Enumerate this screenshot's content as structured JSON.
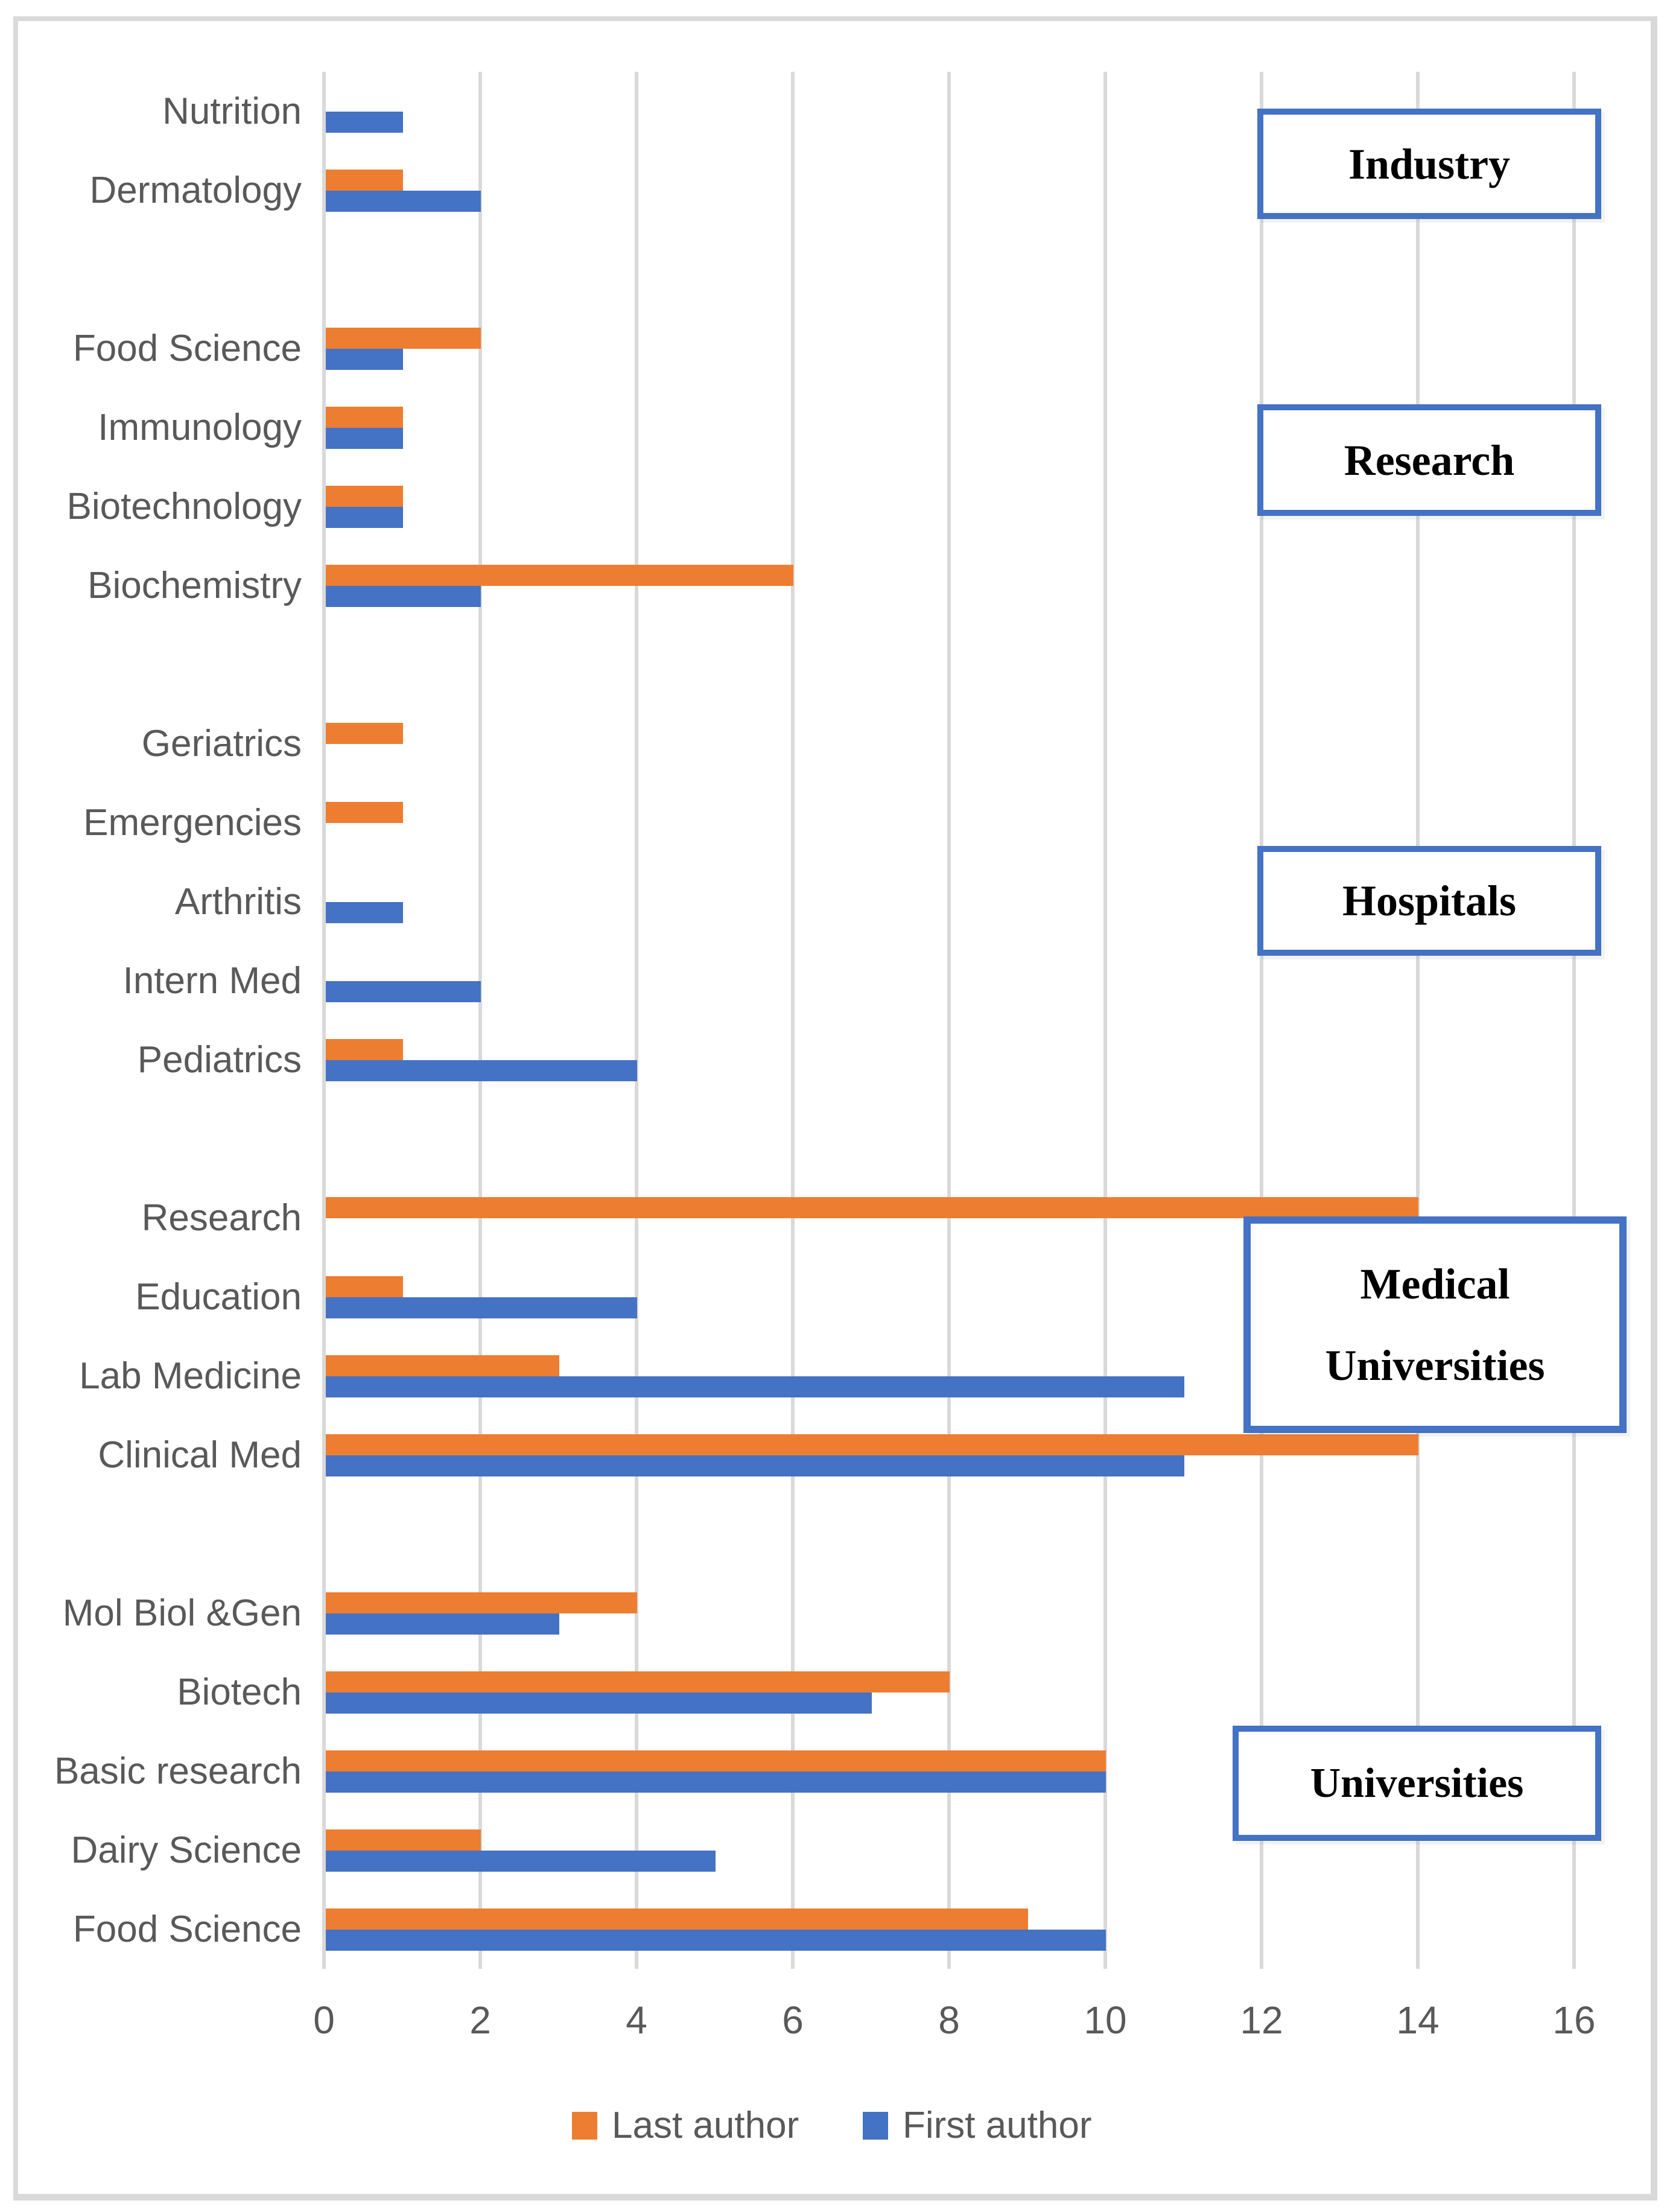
{
  "chart_data": {
    "type": "bar",
    "orientation": "horizontal",
    "title": "",
    "xlabel": "",
    "ylabel": "",
    "xlim": [
      0,
      16
    ],
    "x_ticks": [
      0,
      2,
      4,
      6,
      8,
      10,
      12,
      14,
      16
    ],
    "grid": true,
    "legend_position": "bottom-center",
    "series_names": [
      "Last author",
      "First author"
    ],
    "series_colors": [
      "#ED7D31",
      "#4472C4"
    ],
    "groups": [
      {
        "section": "Industry",
        "categories": [
          {
            "label": "Nutrition",
            "last_author": 0,
            "first_author": 1
          },
          {
            "label": "Dermatology",
            "last_author": 1,
            "first_author": 2
          }
        ]
      },
      {
        "section": "Research",
        "categories": [
          {
            "label": "Food Science",
            "last_author": 2,
            "first_author": 1
          },
          {
            "label": "Immunology",
            "last_author": 1,
            "first_author": 1
          },
          {
            "label": "Biotechnology",
            "last_author": 1,
            "first_author": 1
          },
          {
            "label": "Biochemistry",
            "last_author": 6,
            "first_author": 2
          }
        ]
      },
      {
        "section": "Hospitals",
        "categories": [
          {
            "label": "Geriatrics",
            "last_author": 1,
            "first_author": 0
          },
          {
            "label": "Emergencies",
            "last_author": 1,
            "first_author": 0
          },
          {
            "label": "Arthritis",
            "last_author": 0,
            "first_author": 1
          },
          {
            "label": "Intern Med",
            "last_author": 0,
            "first_author": 2
          },
          {
            "label": "Pediatrics",
            "last_author": 1,
            "first_author": 4
          }
        ]
      },
      {
        "section": "Medical Universities",
        "categories": [
          {
            "label": "Research",
            "last_author": 14,
            "first_author": 0
          },
          {
            "label": "Education",
            "last_author": 1,
            "first_author": 4
          },
          {
            "label": "Lab Medicine",
            "last_author": 3,
            "first_author": 11
          },
          {
            "label": "Clinical Med",
            "last_author": 14,
            "first_author": 11
          }
        ]
      },
      {
        "section": "Universities",
        "categories": [
          {
            "label": "Mol Biol &Gen",
            "last_author": 4,
            "first_author": 3
          },
          {
            "label": "Biotech",
            "last_author": 8,
            "first_author": 7
          },
          {
            "label": "Basic research",
            "last_author": 10,
            "first_author": 10
          },
          {
            "label": "Dairy Science",
            "last_author": 2,
            "first_author": 5
          },
          {
            "label": "Food Science",
            "last_author": 9,
            "first_author": 10
          }
        ]
      }
    ]
  },
  "section_boxes": [
    {
      "id": "industry",
      "lines": [
        "Industry"
      ]
    },
    {
      "id": "research",
      "lines": [
        "Research"
      ]
    },
    {
      "id": "hospitals",
      "lines": [
        "Hospitals"
      ]
    },
    {
      "id": "medical-universities",
      "lines": [
        "Medical",
        "Universities"
      ]
    },
    {
      "id": "universities",
      "lines": [
        "Universities"
      ]
    }
  ],
  "legend": {
    "items": [
      {
        "label": "Last author",
        "color": "#ED7D31"
      },
      {
        "label": "First author",
        "color": "#4472C4"
      }
    ]
  },
  "colors": {
    "last_author": "#ED7D31",
    "first_author": "#4472C4",
    "gridline": "#D9D9D9",
    "axis_text": "#595959",
    "box_border": "#4472C4",
    "page_frame": "#D9D9D9"
  }
}
